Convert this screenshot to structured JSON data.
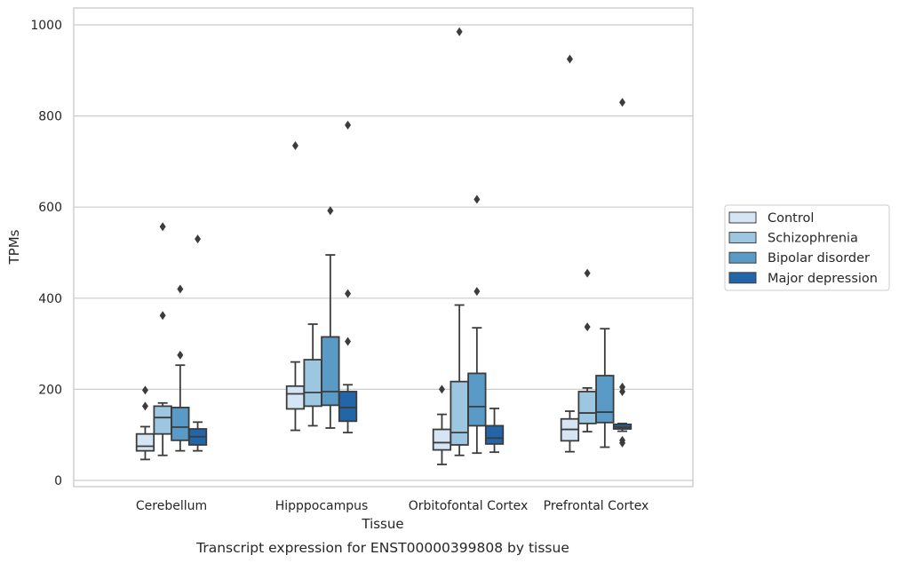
{
  "chart_data": {
    "type": "box",
    "caption": "Transcript expression for ENST00000399808 by tissue",
    "xlabel": "Tissue",
    "ylabel": "TPMs",
    "ylim": [
      -12,
      1035
    ],
    "yticks": [
      0,
      200,
      400,
      600,
      800,
      1000
    ],
    "grid": "horizontal",
    "legend_position": "right",
    "categories": [
      "Cerebellum",
      "Hipppocampus",
      "Orbitofontal Cortex",
      "Prefrontal Cortex"
    ],
    "series": [
      {
        "name": "Control",
        "color": "#d6e5f4",
        "boxes": [
          {
            "whislo": 46,
            "q1": 65,
            "med": 75,
            "q3": 102,
            "whishi": 118,
            "fliers": [
              198,
              163
            ]
          },
          {
            "whislo": 110,
            "q1": 157,
            "med": 190,
            "q3": 207,
            "whishi": 260,
            "fliers": [
              735
            ]
          },
          {
            "whislo": 35,
            "q1": 67,
            "med": 83,
            "q3": 112,
            "whislo_note": "",
            "whishi": 145,
            "fliers": [
              200
            ]
          },
          {
            "whislo": 63,
            "q1": 87,
            "med": 112,
            "q3": 135,
            "whishi": 152,
            "fliers": [
              925
            ]
          }
        ]
      },
      {
        "name": "Schizophrenia",
        "color": "#9dc7e0",
        "boxes": [
          {
            "whislo": 55,
            "q1": 102,
            "med": 138,
            "q3": 163,
            "whishi": 170,
            "fliers": [
              557,
              362
            ]
          },
          {
            "whislo": 120,
            "q1": 163,
            "med": 193,
            "q3": 265,
            "whishi": 343,
            "fliers": []
          },
          {
            "whislo": 55,
            "q1": 78,
            "med": 105,
            "q3": 217,
            "whishi": 385,
            "fliers": [
              985
            ]
          },
          {
            "whislo": 107,
            "q1": 125,
            "med": 148,
            "q3": 195,
            "whishi": 203,
            "fliers": [
              455,
              337
            ]
          }
        ]
      },
      {
        "name": "Bipolar disorder",
        "color": "#5a9ac6",
        "boxes": [
          {
            "whislo": 65,
            "q1": 88,
            "med": 117,
            "q3": 160,
            "whishi": 253,
            "fliers": [
              420,
              275
            ]
          },
          {
            "whislo": 115,
            "q1": 165,
            "med": 195,
            "q3": 315,
            "whishi": 495,
            "fliers": [
              592
            ]
          },
          {
            "whislo": 60,
            "q1": 120,
            "med": 162,
            "q3": 235,
            "whishi": 335,
            "fliers": [
              415,
              617
            ]
          },
          {
            "whislo": 73,
            "q1": 127,
            "med": 150,
            "q3": 230,
            "whishi": 333,
            "fliers": []
          }
        ]
      },
      {
        "name": "Major depression",
        "color": "#2265a9",
        "boxes": [
          {
            "whislo": 65,
            "q1": 78,
            "med": 96,
            "q3": 113,
            "whishi": 128,
            "fliers": [
              530
            ]
          },
          {
            "whislo": 105,
            "q1": 130,
            "med": 160,
            "q3": 195,
            "whishi": 210,
            "fliers": [
              780,
              410,
              305
            ]
          },
          {
            "whislo": 62,
            "q1": 80,
            "med": 93,
            "q3": 120,
            "whishi": 158,
            "fliers": []
          },
          {
            "whislo": 108,
            "q1": 113,
            "med": 117,
            "q3": 123,
            "whishi": 125,
            "fliers": [
              830,
              205,
              195,
              88,
              82
            ]
          }
        ]
      }
    ]
  }
}
